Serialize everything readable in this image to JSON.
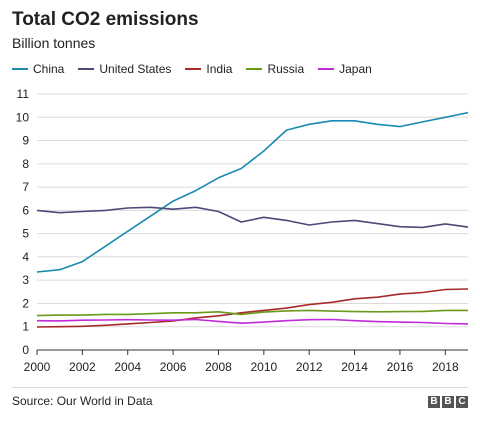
{
  "chart_data": {
    "type": "line",
    "title": "Total CO2 emissions",
    "subtitle": "Billion tonnes",
    "ylim": [
      0,
      11
    ],
    "xlim": [
      2000,
      2019
    ],
    "y_ticks": [
      "0",
      "1",
      "2",
      "3",
      "4",
      "5",
      "6",
      "7",
      "8",
      "9",
      "10",
      "11"
    ],
    "x_ticks": [
      "2000",
      "2002",
      "2004",
      "2006",
      "2008",
      "2010",
      "2012",
      "2014",
      "2016",
      "2018"
    ],
    "grid": "horizontal",
    "legend_position": "top",
    "x": [
      2000,
      2001,
      2002,
      2003,
      2004,
      2005,
      2006,
      2007,
      2008,
      2009,
      2010,
      2011,
      2012,
      2013,
      2014,
      2015,
      2016,
      2017,
      2018,
      2019
    ],
    "series": [
      {
        "name": "China",
        "color": "#1a8ab0",
        "values": [
          3.35,
          3.45,
          3.8,
          4.45,
          5.1,
          5.75,
          6.4,
          6.85,
          7.4,
          7.8,
          8.55,
          9.45,
          9.7,
          9.85,
          9.85,
          9.7,
          9.6,
          9.8,
          10.0,
          10.2
        ]
      },
      {
        "name": "United States",
        "color": "#4a4a7a",
        "values": [
          6.0,
          5.9,
          5.95,
          6.0,
          6.1,
          6.13,
          6.05,
          6.13,
          5.95,
          5.5,
          5.7,
          5.57,
          5.37,
          5.5,
          5.57,
          5.43,
          5.3,
          5.27,
          5.42,
          5.28
        ]
      },
      {
        "name": "India",
        "color": "#a62a2a",
        "values": [
          0.99,
          1.0,
          1.02,
          1.06,
          1.12,
          1.18,
          1.25,
          1.38,
          1.47,
          1.6,
          1.7,
          1.8,
          1.95,
          2.05,
          2.2,
          2.27,
          2.4,
          2.47,
          2.6,
          2.62
        ]
      },
      {
        "name": "Russia",
        "color": "#6a9a1a",
        "values": [
          1.48,
          1.5,
          1.5,
          1.53,
          1.53,
          1.56,
          1.6,
          1.6,
          1.64,
          1.53,
          1.63,
          1.68,
          1.7,
          1.67,
          1.65,
          1.64,
          1.65,
          1.66,
          1.7,
          1.7
        ]
      },
      {
        "name": "Japan",
        "color": "#c02ad8",
        "values": [
          1.26,
          1.25,
          1.28,
          1.29,
          1.3,
          1.29,
          1.28,
          1.31,
          1.23,
          1.15,
          1.2,
          1.26,
          1.3,
          1.31,
          1.26,
          1.22,
          1.2,
          1.18,
          1.14,
          1.12
        ]
      }
    ]
  },
  "footer": {
    "source": "Source: Our World in Data",
    "logo_letters": [
      "B",
      "B",
      "C"
    ]
  }
}
